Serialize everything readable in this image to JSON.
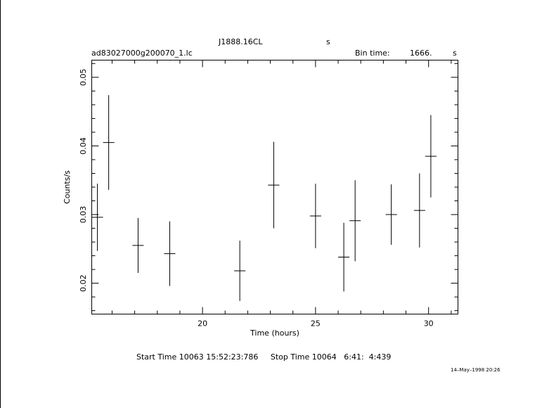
{
  "header": {
    "object": "J1888.16CL",
    "object_unit": "s",
    "filename": "ad83027000g200070_1.lc",
    "bin_label": "Bin time:",
    "bin_value": "1666.",
    "bin_unit": "s"
  },
  "footer": {
    "start_stop": "Start Time 10063 15:52:23:786     Stop Time 10064   6:41:  4:439",
    "date_stamp": "14–May–1998 20:26"
  },
  "chart_data": {
    "type": "scatter",
    "xlabel": "Time (hours)",
    "ylabel": "Counts/s",
    "xlim": [
      15.1,
      31.3
    ],
    "ylim": [
      0.0155,
      0.0525
    ],
    "xticks": [
      20,
      25,
      30
    ],
    "xtick_labels": [
      "20",
      "25",
      "30"
    ],
    "yticks": [
      0.02,
      0.03,
      0.04,
      0.05
    ],
    "ytick_labels": [
      "0.02",
      "0.03",
      "0.04",
      "0.05"
    ],
    "grid": false,
    "points": [
      {
        "x": 15.35,
        "y": 0.0296,
        "xerr": 0.25,
        "yerr": 0.0049
      },
      {
        "x": 15.85,
        "y": 0.0405,
        "xerr": 0.25,
        "yerr": 0.0069
      },
      {
        "x": 17.15,
        "y": 0.0255,
        "xerr": 0.25,
        "yerr": 0.004
      },
      {
        "x": 18.55,
        "y": 0.0243,
        "xerr": 0.25,
        "yerr": 0.0047
      },
      {
        "x": 21.65,
        "y": 0.0218,
        "xerr": 0.25,
        "yerr": 0.0044
      },
      {
        "x": 23.15,
        "y": 0.0343,
        "xerr": 0.25,
        "yerr": 0.0063
      },
      {
        "x": 25.0,
        "y": 0.0298,
        "xerr": 0.25,
        "yerr": 0.0047
      },
      {
        "x": 26.25,
        "y": 0.0238,
        "xerr": 0.25,
        "yerr": 0.005
      },
      {
        "x": 26.75,
        "y": 0.0291,
        "xerr": 0.25,
        "yerr": 0.0059
      },
      {
        "x": 28.35,
        "y": 0.03,
        "xerr": 0.25,
        "yerr": 0.0044
      },
      {
        "x": 29.6,
        "y": 0.0306,
        "xerr": 0.25,
        "yerr": 0.0054
      },
      {
        "x": 30.1,
        "y": 0.0385,
        "xerr": 0.25,
        "yerr": 0.006
      }
    ]
  }
}
